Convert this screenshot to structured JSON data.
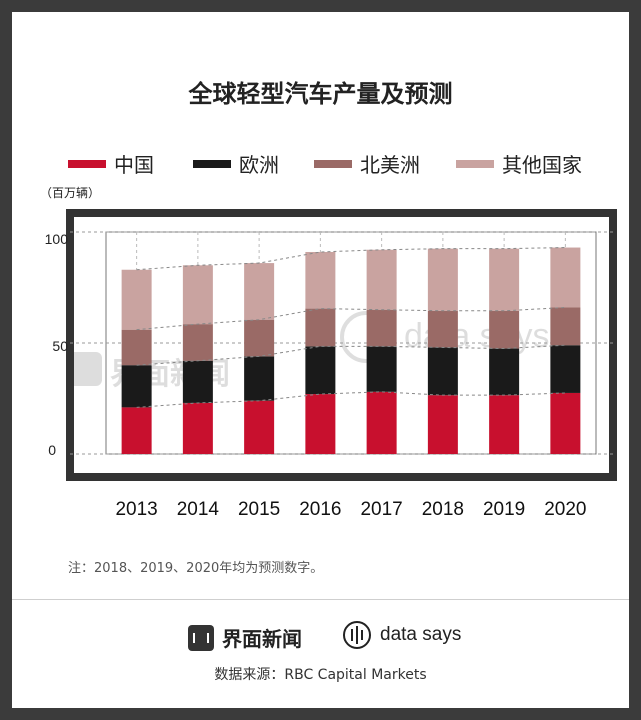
{
  "title": "全球轻型汽车产量及预测",
  "unit_label": "（百万辆）",
  "note": "注：2018、2019、2020年均为预测数字。",
  "brand": {
    "jiemian": "界面新闻",
    "datasays": "data says"
  },
  "watermark": {
    "jiemian": "界面新闻",
    "datasays": "data says"
  },
  "source": "数据来源：RBC Capital Markets",
  "colors": {
    "china": "#c8102e",
    "europe": "#1a1a1a",
    "north_america": "#9a6a66",
    "others": "#c9a3a0",
    "frame": "#333333"
  },
  "chart_data": {
    "type": "bar",
    "stacked": true,
    "categories": [
      "2013",
      "2014",
      "2015",
      "2016",
      "2017",
      "2018",
      "2019",
      "2020"
    ],
    "series": [
      {
        "name": "中国",
        "values": [
          21,
          23,
          24,
          27,
          28,
          26.5,
          26.5,
          27.5
        ]
      },
      {
        "name": "欧洲",
        "values": [
          19,
          19,
          20,
          21.5,
          20.5,
          21.5,
          21,
          21.5
        ]
      },
      {
        "name": "北美洲",
        "values": [
          16,
          16.5,
          16.5,
          17,
          16.5,
          16.5,
          17,
          17
        ]
      },
      {
        "name": "其他国家",
        "values": [
          27,
          26.5,
          25.5,
          25.5,
          27,
          28,
          28,
          27
        ]
      }
    ],
    "yticks": [
      "0",
      "50",
      "100"
    ],
    "ylim": [
      0,
      100
    ],
    "grid": "dashed",
    "legend": "top"
  }
}
